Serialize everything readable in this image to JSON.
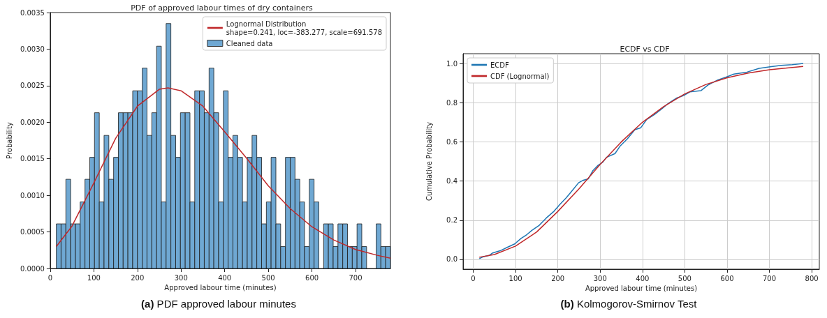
{
  "chart_data": [
    {
      "type": "histogram",
      "title": "PDF of approved labour times of dry containers",
      "xlabel": "Approved labour time (minutes)",
      "ylabel": "Probability",
      "legend": "top right",
      "grid": false,
      "marker": "none",
      "annotations": [
        "(a) PDF approved labour minutes"
      ],
      "bins": [
        14,
        24.9,
        35.9,
        46.8,
        57.8,
        68.7,
        79.7,
        90.6,
        101.5,
        112.5,
        123.4,
        134.4,
        145.3,
        156.3,
        167.2,
        178.1,
        189.1,
        200.0,
        211.0,
        221.9,
        232.9,
        243.8,
        254.7,
        265.7,
        276.6,
        287.6,
        298.5,
        309.5,
        320.4,
        331.3,
        342.3,
        353.2,
        364.2,
        375.1,
        386.1,
        397.0,
        407.9,
        418.9,
        429.8,
        440.8,
        451.7,
        462.7,
        473.6,
        484.6,
        495.5,
        506.4,
        517.4,
        528.3,
        539.3,
        550.2,
        561.2,
        572.1,
        583.0,
        594.0,
        604.9,
        615.9,
        626.8,
        637.7,
        648.7,
        659.6,
        670.6,
        681.5,
        692.5,
        703.4,
        714.3,
        725.3,
        736.2,
        747.2,
        758.1,
        769.1,
        780.0
      ],
      "series": [
        {
          "name": "Lognormal Distribution\nshape=0.241, loc=-383.277, scale=691.578",
          "type": "line",
          "color": "#c0282a",
          "x": [
            14,
            50,
            100,
            150,
            200,
            250,
            270,
            300,
            350,
            400,
            450,
            500,
            550,
            600,
            650,
            700,
            750,
            780
          ],
          "values": [
            0.0003,
            0.00058,
            0.00117,
            0.00178,
            0.00222,
            0.00245,
            0.00247,
            0.00243,
            0.00222,
            0.00187,
            0.00151,
            0.00113,
            0.00082,
            0.00057,
            0.00039,
            0.00026,
            0.00018,
            0.00014
          ]
        },
        {
          "name": "Cleaned data",
          "color": "#6fa8d3",
          "values": [
            0.00061,
            0.00061,
            0.00122,
            0.00061,
            0.00061,
            0.00091,
            0.00122,
            0.00152,
            0.00213,
            0.00091,
            0.00182,
            0.00122,
            0.00152,
            0.00213,
            0.00213,
            0.00213,
            0.00243,
            0.00243,
            0.00274,
            0.00182,
            0.00213,
            0.00304,
            0.00091,
            0.00335,
            0.00182,
            0.00152,
            0.00213,
            0.00213,
            0.00091,
            0.00243,
            0.00243,
            0.00213,
            0.00274,
            0.00213,
            0.00091,
            0.00243,
            0.00152,
            0.00182,
            0.00152,
            0.00091,
            0.00152,
            0.00182,
            0.00152,
            0.00061,
            0.00091,
            0.00152,
            0.00061,
            0.0003,
            0.00152,
            0.00152,
            0.00122,
            0.00091,
            0.0003,
            0.00122,
            0.00091,
            0,
            0.00061,
            0.00061,
            0.0003,
            0.00061,
            0.00061,
            0.0003,
            0.0003,
            0.00061,
            0.0003,
            0,
            0,
            0.00061,
            0.0003,
            0.0003
          ]
        }
      ],
      "xlim": [
        0,
        780
      ],
      "xticks": [
        0,
        100,
        200,
        300,
        400,
        500,
        600,
        700
      ],
      "ylim": [
        0,
        0.0035
      ],
      "yticks": [
        {
          "value": 0,
          "label": "0.0000"
        },
        {
          "value": 0.0005,
          "label": "0.0005"
        },
        {
          "value": 0.001,
          "label": "0.0010"
        },
        {
          "value": 0.0015,
          "label": "0.0015"
        },
        {
          "value": 0.002,
          "label": "0.0020"
        },
        {
          "value": 0.0025,
          "label": "0.0025"
        },
        {
          "value": 0.003,
          "label": "0.0030"
        },
        {
          "value": 0.0035,
          "label": "0.0035"
        }
      ]
    },
    {
      "type": "line",
      "title": "ECDF vs CDF",
      "xlabel": "Approved labour time (minutes)",
      "ylabel": "Cumulative Probability",
      "legend": "top left",
      "grid": true,
      "marker": "none",
      "annotations": [
        "(b) Kolmogorov-Smirnov Test"
      ],
      "series": [
        {
          "name": "ECDF",
          "color": "#1f77b4",
          "x": [
            14.5,
            23,
            37.6,
            46,
            63.6,
            81,
            98,
            113,
            127,
            139,
            156,
            173,
            191,
            205,
            220,
            234,
            249,
            260,
            272,
            283,
            295,
            306,
            315,
            335,
            347,
            364,
            382,
            396,
            410,
            428,
            445,
            462,
            480,
            497,
            512,
            538,
            555,
            578,
            598,
            616,
            647,
            676,
            705,
            728,
            754,
            780
          ],
          "values": [
            0.004,
            0.013,
            0.02,
            0.033,
            0.044,
            0.062,
            0.079,
            0.107,
            0.127,
            0.149,
            0.174,
            0.212,
            0.246,
            0.281,
            0.315,
            0.351,
            0.391,
            0.404,
            0.411,
            0.454,
            0.48,
            0.496,
            0.521,
            0.54,
            0.578,
            0.615,
            0.662,
            0.672,
            0.714,
            0.739,
            0.767,
            0.798,
            0.823,
            0.836,
            0.855,
            0.861,
            0.89,
            0.916,
            0.931,
            0.946,
            0.956,
            0.975,
            0.984,
            0.99,
            0.994,
            1.0
          ]
        },
        {
          "name": "CDF (Lognormal)",
          "color": "#c0282a",
          "x": [
            14,
            50,
            100,
            150,
            200,
            250,
            300,
            350,
            400,
            450,
            500,
            550,
            600,
            650,
            700,
            750,
            780
          ],
          "values": [
            0.011,
            0.025,
            0.068,
            0.14,
            0.245,
            0.36,
            0.485,
            0.6,
            0.7,
            0.78,
            0.845,
            0.893,
            0.927,
            0.951,
            0.968,
            0.979,
            0.985
          ]
        }
      ],
      "xlim": [
        -24,
        818
      ],
      "xticks": [
        0,
        100,
        200,
        300,
        400,
        500,
        600,
        700,
        800
      ],
      "ylim": [
        -0.05,
        1.05
      ],
      "yticks": [
        {
          "value": 0,
          "label": "0.0"
        },
        {
          "value": 0.2,
          "label": "0.2"
        },
        {
          "value": 0.4,
          "label": "0.4"
        },
        {
          "value": 0.6,
          "label": "0.6"
        },
        {
          "value": 0.8,
          "label": "0.8"
        },
        {
          "value": 1,
          "label": "1.0"
        }
      ]
    }
  ]
}
